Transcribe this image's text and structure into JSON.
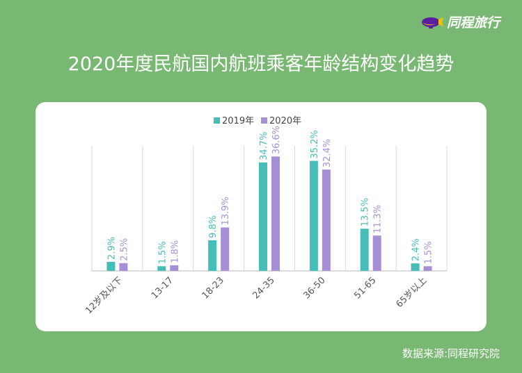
{
  "brand": {
    "name": "同程旅行",
    "icon": "blimp-logo-icon"
  },
  "title": "2020年度民航国内航班乘客年龄结构变化趋势",
  "source": "数据来源:同程研究院",
  "chart_data": {
    "type": "bar",
    "title": "2020年度民航国内航班乘客年龄结构变化趋势",
    "categories": [
      "12岁及以下",
      "13-17",
      "18-23",
      "24-35",
      "36-50",
      "51-65",
      "65岁以上"
    ],
    "series": [
      {
        "name": "2019年",
        "color": "#47bdb8",
        "values": [
          2.9,
          1.5,
          9.8,
          34.7,
          35.2,
          13.5,
          2.4
        ],
        "labels": [
          "2.9%",
          "1.5%",
          "9.8%",
          "34.7%",
          "35.2%",
          "13.5%",
          "2.4%"
        ]
      },
      {
        "name": "2020年",
        "color": "#a78fd6",
        "values": [
          2.5,
          1.8,
          13.9,
          36.6,
          32.4,
          11.3,
          1.5
        ],
        "labels": [
          "2.5%",
          "1.8%",
          "13.9%",
          "36.6%",
          "32.4%",
          "11.3%",
          "1.5%"
        ]
      }
    ],
    "ylim": [
      0,
      40
    ],
    "legend": "top-center",
    "grid": "vertical separators"
  }
}
